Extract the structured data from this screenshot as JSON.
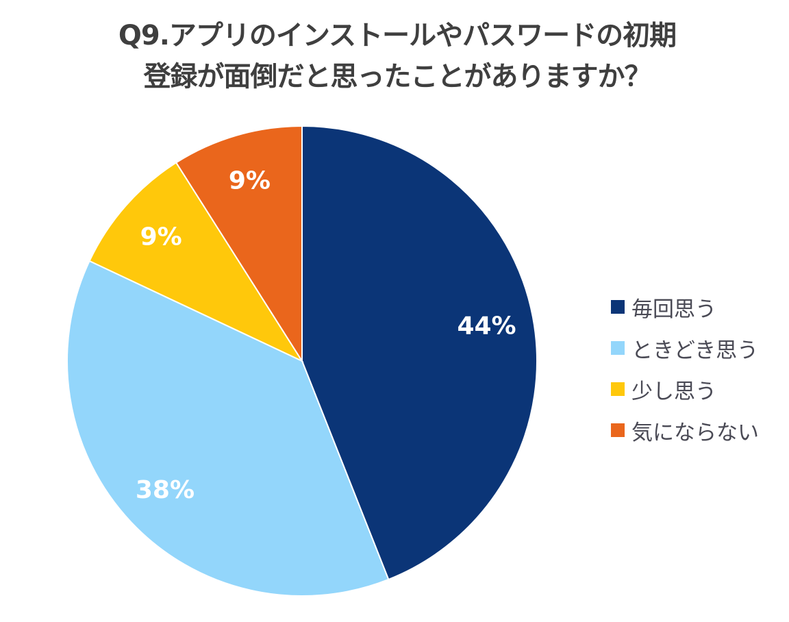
{
  "chart_data": {
    "type": "pie",
    "title_lines": [
      "Q9.アプリのインストールやパスワードの初期",
      "登録が面倒だと思ったことがありますか？"
    ],
    "categories": [
      "毎回思う",
      "ときどき思う",
      "少し思う",
      "気にならない"
    ],
    "values": [
      44,
      38,
      9,
      9
    ],
    "labels": [
      "44%",
      "38%",
      "9%",
      "9%"
    ],
    "colors": [
      "#0b3577",
      "#93d6fb",
      "#ffc80b",
      "#ea661c"
    ],
    "start": "top, clockwise",
    "legend_position": "right"
  }
}
